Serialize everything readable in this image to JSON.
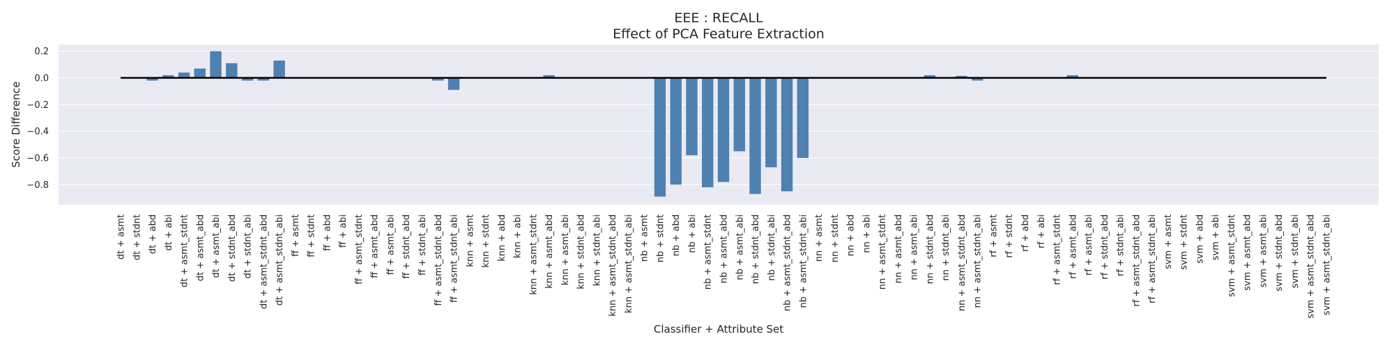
{
  "chart_data": {
    "type": "bar",
    "title": [
      "EEE : RECALL",
      "Effect of PCA Feature Extraction"
    ],
    "xlabel": "Classifier + Attribute Set",
    "ylabel": "Score Difference",
    "ylim": [
      -0.95,
      0.25
    ],
    "yticks": [
      0.2,
      0.0,
      -0.2,
      -0.4,
      -0.6,
      -0.8
    ],
    "ytick_labels": [
      "0.2",
      "0.0",
      "−0.2",
      "−0.4",
      "−0.6",
      "−0.8"
    ],
    "grid": true,
    "legend": "none",
    "colors": {
      "bar": "#4f81b0",
      "background": "#eaeaf2",
      "grid": "#ffffff",
      "zero_line": "#000000"
    },
    "categories": [
      "dt + asmt",
      "dt + stdnt",
      "dt + abd",
      "dt + abi",
      "dt + asmt_stdnt",
      "dt + asmt_abd",
      "dt + asmt_abi",
      "dt + stdnt_abd",
      "dt + stdnt_abi",
      "dt + asmt_stdnt_abd",
      "dt + asmt_stdnt_abi",
      "ff + asmt",
      "ff + stdnt",
      "ff + abd",
      "ff + abi",
      "ff + asmt_stdnt",
      "ff + asmt_abd",
      "ff + asmt_abi",
      "ff + stdnt_abd",
      "ff + stdnt_abi",
      "ff + asmt_stdnt_abd",
      "ff + asmt_stdnt_abi",
      "knn + asmt",
      "knn + stdnt",
      "knn + abd",
      "knn + abi",
      "knn + asmt_stdnt",
      "knn + asmt_abd",
      "knn + asmt_abi",
      "knn + stdnt_abd",
      "knn + stdnt_abi",
      "knn + asmt_stdnt_abd",
      "knn + asmt_stdnt_abi",
      "nb + asmt",
      "nb + stdnt",
      "nb + abd",
      "nb + abi",
      "nb + asmt_stdnt",
      "nb + asmt_abd",
      "nb + asmt_abi",
      "nb + stdnt_abd",
      "nb + stdnt_abi",
      "nb + asmt_stdnt_abd",
      "nb + asmt_stdnt_abi",
      "nn + asmt",
      "nn + stdnt",
      "nn + abd",
      "nn + abi",
      "nn + asmt_stdnt",
      "nn + asmt_abd",
      "nn + asmt_abi",
      "nn + stdnt_abd",
      "nn + stdnt_abi",
      "nn + asmt_stdnt_abd",
      "nn + asmt_stdnt_abi",
      "rf + asmt",
      "rf + stdnt",
      "rf + abd",
      "rf + abi",
      "rf + asmt_stdnt",
      "rf + asmt_abd",
      "rf + asmt_abi",
      "rf + stdnt_abd",
      "rf + stdnt_abi",
      "rf + asmt_stdnt_abd",
      "rf + asmt_stdnt_abi",
      "svm + asmt",
      "svm + stdnt",
      "svm + abd",
      "svm + abi",
      "svm + asmt_stdnt",
      "svm + asmt_abd",
      "svm + asmt_abi",
      "svm + stdnt_abd",
      "svm + stdnt_abi",
      "svm + asmt_stdnt_abd",
      "svm + asmt_stdnt_abi"
    ],
    "values": [
      0.0,
      0.0,
      -0.02,
      0.02,
      0.04,
      0.07,
      0.2,
      0.11,
      -0.02,
      -0.02,
      0.13,
      0.0,
      0.0,
      0.0,
      0.0,
      0.0,
      0.0,
      0.0,
      0.0,
      0.0,
      -0.02,
      -0.09,
      0.0,
      0.0,
      0.0,
      0.0,
      0.0,
      0.02,
      0.0,
      0.0,
      0.0,
      0.0,
      0.0,
      0.0,
      -0.89,
      -0.8,
      -0.58,
      -0.82,
      -0.78,
      -0.55,
      -0.87,
      -0.67,
      -0.85,
      -0.6,
      0.0,
      0.0,
      0.0,
      0.0,
      0.0,
      0.0,
      0.0,
      0.02,
      0.0,
      0.015,
      -0.02,
      0.0,
      0.0,
      0.0,
      0.0,
      0.0,
      0.02,
      0.0,
      0.0,
      0.0,
      0.0,
      0.0,
      0.0,
      0.0,
      0.0,
      0.0,
      0.0,
      0.0,
      0.0,
      0.0,
      0.0,
      0.0,
      0.0
    ]
  }
}
